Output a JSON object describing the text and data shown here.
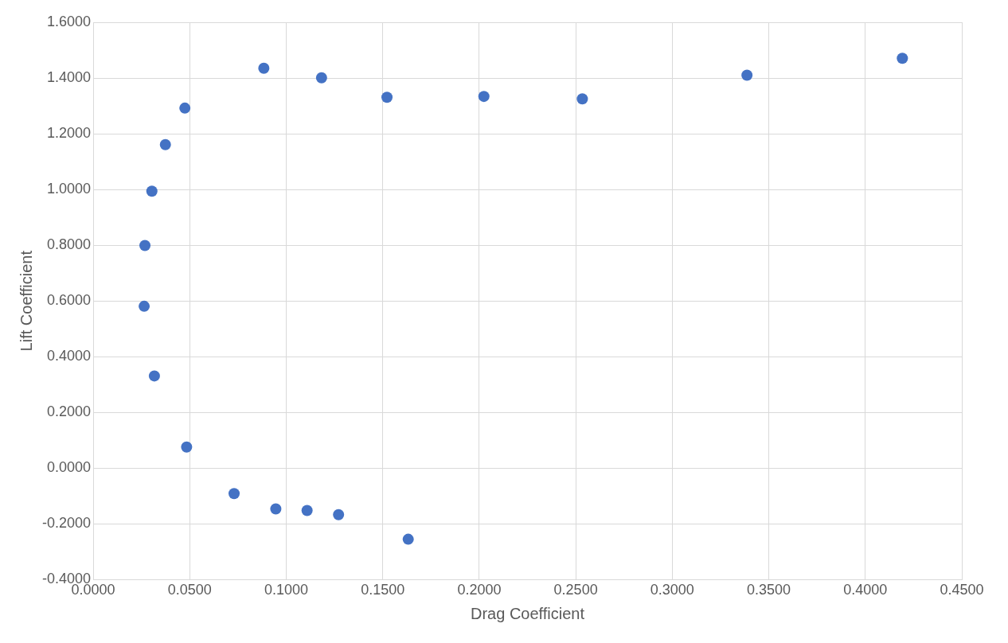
{
  "chart_data": {
    "type": "scatter",
    "xlabel": "Drag Coefficient",
    "ylabel": "Lift Coefficient",
    "x": [
      0.1632,
      0.1271,
      0.1108,
      0.0946,
      0.073,
      0.0484,
      0.0317,
      0.0264,
      0.0268,
      0.0304,
      0.0374,
      0.0475,
      0.0884,
      0.1183,
      0.1522,
      0.2024,
      0.2534,
      0.3387,
      0.4192
    ],
    "series": [
      {
        "color": "#4472c4",
        "values": [
          -0.255,
          -0.167,
          -0.152,
          -0.146,
          -0.091,
          0.076,
          0.331,
          0.581,
          0.799,
          0.994,
          1.161,
          1.292,
          1.435,
          1.401,
          1.331,
          1.334,
          1.325,
          1.41,
          1.471
        ]
      }
    ],
    "xlim": [
      0,
      0.45
    ],
    "xticks": [
      {
        "value": 0,
        "label": "0.0000"
      },
      {
        "value": 0.05,
        "label": "0.0500"
      },
      {
        "value": 0.1,
        "label": "0.1000"
      },
      {
        "value": 0.15,
        "label": "0.1500"
      },
      {
        "value": 0.2,
        "label": "0.2000"
      },
      {
        "value": 0.25,
        "label": "0.2500"
      },
      {
        "value": 0.3,
        "label": "0.3000"
      },
      {
        "value": 0.35,
        "label": "0.3500"
      },
      {
        "value": 0.4,
        "label": "0.4000"
      },
      {
        "value": 0.45,
        "label": "0.4500"
      }
    ],
    "ylim": [
      -0.4,
      1.6
    ],
    "yticks": [
      {
        "value": -0.4,
        "label": "-0.4000"
      },
      {
        "value": -0.2,
        "label": "-0.2000"
      },
      {
        "value": 0,
        "label": "0.0000"
      },
      {
        "value": 0.2,
        "label": "0.2000"
      },
      {
        "value": 0.4,
        "label": "0.4000"
      },
      {
        "value": 0.6,
        "label": "0.6000"
      },
      {
        "value": 0.8,
        "label": "0.8000"
      },
      {
        "value": 1,
        "label": "1.0000"
      },
      {
        "value": 1.2,
        "label": "1.2000"
      },
      {
        "value": 1.4,
        "label": "1.4000"
      },
      {
        "value": 1.6,
        "label": "1.6000"
      }
    ],
    "grid": true,
    "marker": "circle",
    "legend": false
  }
}
